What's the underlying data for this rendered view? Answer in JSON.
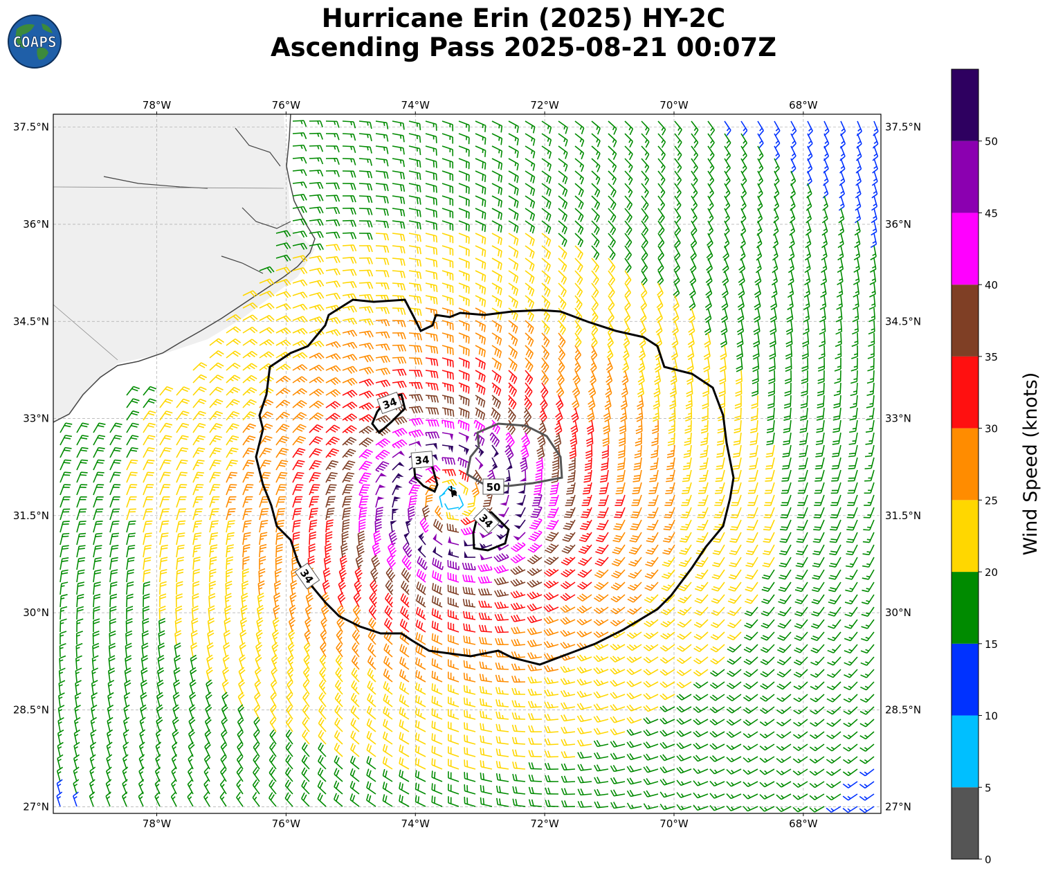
{
  "title": {
    "line1": "Hurricane Erin (2025) HY-2C",
    "line2": "Ascending Pass 2025-08-21 00:07Z"
  },
  "logo": {
    "text": "COAPS",
    "icon": "globe-logo-icon"
  },
  "map": {
    "lon_range": [
      -79.6,
      -66.8
    ],
    "lat_range": [
      26.9,
      37.7
    ],
    "lon_ticks": [
      {
        "value": -78,
        "label": "78°W"
      },
      {
        "value": -76,
        "label": "76°W"
      },
      {
        "value": -74,
        "label": "74°W"
      },
      {
        "value": -72,
        "label": "72°W"
      },
      {
        "value": -70,
        "label": "70°W"
      },
      {
        "value": -68,
        "label": "68°W"
      }
    ],
    "lat_ticks": [
      {
        "value": 37.5,
        "label": "37.5°N"
      },
      {
        "value": 36,
        "label": "36°N"
      },
      {
        "value": 34.5,
        "label": "34.5°N"
      },
      {
        "value": 33,
        "label": "33°N"
      },
      {
        "value": 31.5,
        "label": "31.5°N"
      },
      {
        "value": 30,
        "label": "30°N"
      },
      {
        "value": 28.5,
        "label": "28.5°N"
      },
      {
        "value": 27,
        "label": "27°N"
      }
    ],
    "gridlines": true,
    "storm_center": {
      "lon": -73.4,
      "lat": 31.75
    },
    "contours": [
      {
        "label": "34",
        "level": 34
      },
      {
        "label": "34",
        "level": 34
      },
      {
        "label": "34",
        "level": 34
      },
      {
        "label": "34",
        "level": 34
      },
      {
        "label": "50",
        "level": 50
      }
    ],
    "coastline_color": "#444444"
  },
  "colorbar": {
    "title": "Wind Speed (knots)",
    "bins": [
      {
        "from": 0,
        "to": 5,
        "color": "#555555"
      },
      {
        "from": 5,
        "to": 10,
        "color": "#00bfff"
      },
      {
        "from": 10,
        "to": 15,
        "color": "#0032ff"
      },
      {
        "from": 15,
        "to": 20,
        "color": "#008b00"
      },
      {
        "from": 20,
        "to": 25,
        "color": "#ffd700"
      },
      {
        "from": 25,
        "to": 30,
        "color": "#ff8c00"
      },
      {
        "from": 30,
        "to": 35,
        "color": "#ff1010"
      },
      {
        "from": 35,
        "to": 40,
        "color": "#7f3f25"
      },
      {
        "from": 40,
        "to": 45,
        "color": "#ff00ff"
      },
      {
        "from": 45,
        "to": 50,
        "color": "#8b00b0"
      },
      {
        "from": 50,
        "to": 55,
        "color": "#2e0060"
      }
    ],
    "tick_labels": [
      "0",
      "5",
      "10",
      "15",
      "20",
      "25",
      "30",
      "35",
      "40",
      "45",
      "50"
    ]
  }
}
